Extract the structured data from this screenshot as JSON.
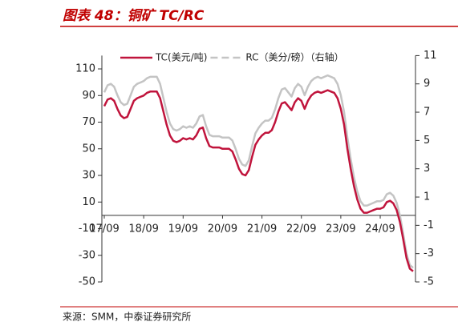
{
  "title": "图表 48：铜矿 TC/RC",
  "source": "来源：SMM，中泰证券研究所",
  "chart_data": {
    "type": "line",
    "categories": [
      "17/09",
      null,
      null,
      null,
      null,
      null,
      null,
      null,
      null,
      null,
      null,
      null,
      "18/09",
      null,
      null,
      null,
      null,
      null,
      null,
      null,
      null,
      null,
      null,
      null,
      "19/09",
      null,
      null,
      null,
      null,
      null,
      null,
      null,
      null,
      null,
      null,
      null,
      "20/09",
      null,
      null,
      null,
      null,
      null,
      null,
      null,
      null,
      null,
      null,
      null,
      "21/09",
      null,
      null,
      null,
      null,
      null,
      null,
      null,
      null,
      null,
      null,
      null,
      "22/09",
      null,
      null,
      null,
      null,
      null,
      null,
      null,
      null,
      null,
      null,
      null,
      "23/09",
      null,
      null,
      null,
      null,
      null,
      null,
      null,
      null,
      null,
      null,
      null,
      "24/09",
      null,
      null,
      null,
      null,
      null,
      null,
      null,
      null,
      null,
      null
    ],
    "series": [
      {
        "name": "TC(美元/吨)",
        "color": "#c0143c",
        "values": [
          82,
          87,
          88,
          86,
          80,
          75,
          73,
          74,
          80,
          86,
          88,
          89,
          90,
          92,
          93,
          93,
          93,
          88,
          78,
          68,
          60,
          56,
          55,
          56,
          58,
          57,
          58,
          57,
          60,
          65,
          66,
          58,
          52,
          51,
          51,
          51,
          50,
          50,
          50,
          48,
          42,
          35,
          31,
          30,
          34,
          44,
          53,
          57,
          60,
          62,
          62,
          64,
          70,
          78,
          84,
          85,
          82,
          79,
          85,
          88,
          86,
          80,
          86,
          90,
          92,
          93,
          92,
          93,
          94,
          93,
          92,
          88,
          80,
          68,
          50,
          35,
          22,
          12,
          5,
          2,
          2,
          3,
          4,
          5,
          5,
          6,
          10,
          11,
          9,
          4,
          -5,
          -18,
          -32,
          -40,
          -42
        ]
      },
      {
        "name": "RC（美分/磅）（右轴）",
        "color": "#c4c4c4",
        "axis": "y2",
        "values": [
          8.4,
          8.9,
          9,
          8.8,
          8.2,
          7.7,
          7.5,
          7.6,
          8.2,
          8.8,
          9,
          9.1,
          9.2,
          9.4,
          9.5,
          9.5,
          9.5,
          9,
          8,
          7,
          6.2,
          5.8,
          5.7,
          5.8,
          6,
          5.9,
          6,
          5.9,
          6.2,
          6.7,
          6.8,
          6,
          5.4,
          5.3,
          5.3,
          5.3,
          5.2,
          5.2,
          5.2,
          5,
          4.4,
          3.7,
          3.3,
          3.2,
          3.6,
          4.6,
          5.5,
          5.9,
          6.2,
          6.4,
          6.4,
          6.6,
          7.2,
          8,
          8.6,
          8.7,
          8.4,
          8.1,
          8.7,
          9,
          8.8,
          8.2,
          8.8,
          9.2,
          9.4,
          9.5,
          9.4,
          9.5,
          9.6,
          9.5,
          9.4,
          9,
          8.2,
          7,
          5.2,
          3.7,
          2.4,
          1.4,
          0.7,
          0.4,
          0.4,
          0.5,
          0.6,
          0.7,
          0.7,
          0.8,
          1.2,
          1.3,
          1.1,
          0.6,
          -0.3,
          -1.6,
          -3,
          -3.8,
          -4
        ]
      }
    ],
    "ylim": [
      -50,
      120
    ],
    "yticks": [
      -50,
      -30,
      -10,
      10,
      30,
      50,
      70,
      90,
      110
    ],
    "y2lim": [
      -5,
      11
    ],
    "y2ticks": [
      -5,
      -3,
      -1,
      1,
      3,
      5,
      7,
      9,
      11
    ],
    "legend": "top"
  }
}
